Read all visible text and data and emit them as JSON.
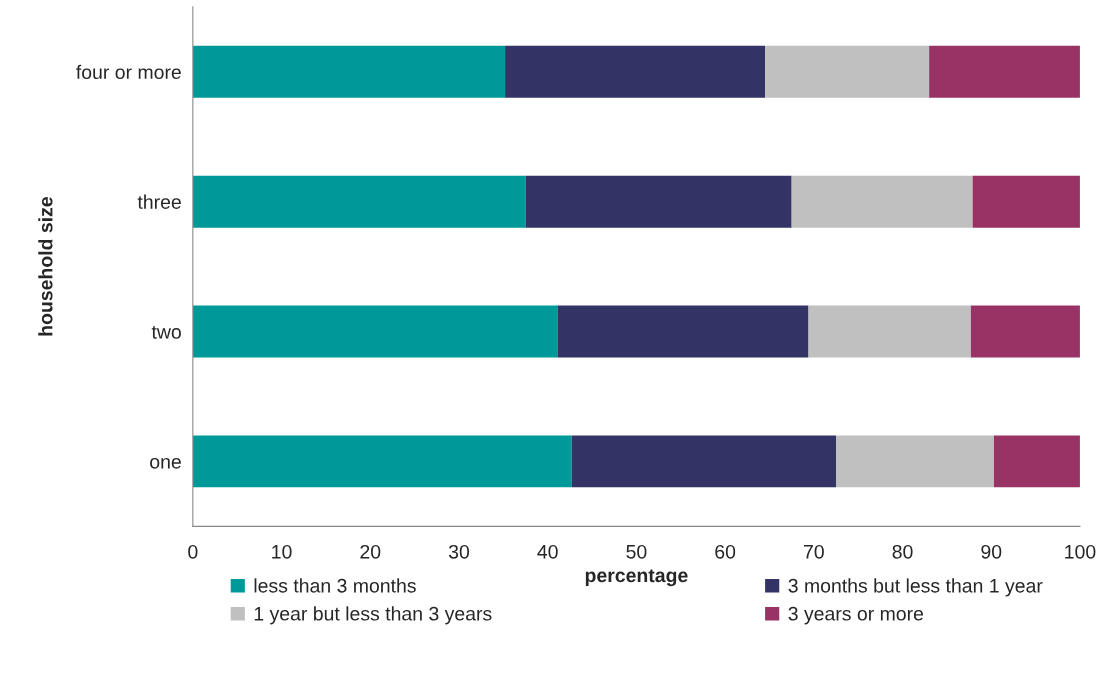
{
  "chart_data": {
    "type": "bar",
    "orientation": "horizontal",
    "stacked": true,
    "categories": [
      "four or more",
      "three",
      "two",
      "one"
    ],
    "series": [
      {
        "name": "less than 3 months",
        "color": "#009999",
        "values": [
          35.2,
          37.5,
          41.1,
          42.7
        ]
      },
      {
        "name": "3 months but less than 1 year",
        "color": "#333366",
        "values": [
          29.3,
          30.0,
          28.3,
          29.8
        ]
      },
      {
        "name": "1 year but less than 3 years",
        "color": "#c0c0c0",
        "values": [
          18.5,
          20.4,
          18.3,
          17.8
        ]
      },
      {
        "name": "3 years or more",
        "color": "#993366",
        "values": [
          17.0,
          12.1,
          12.3,
          9.7
        ]
      }
    ],
    "xlabel": "percentage",
    "ylabel": "household size",
    "xlim": [
      0,
      100
    ],
    "xticks": [
      0,
      10,
      20,
      30,
      40,
      50,
      60,
      70,
      80,
      90,
      100
    ],
    "grid": false,
    "legend": "bottom"
  }
}
